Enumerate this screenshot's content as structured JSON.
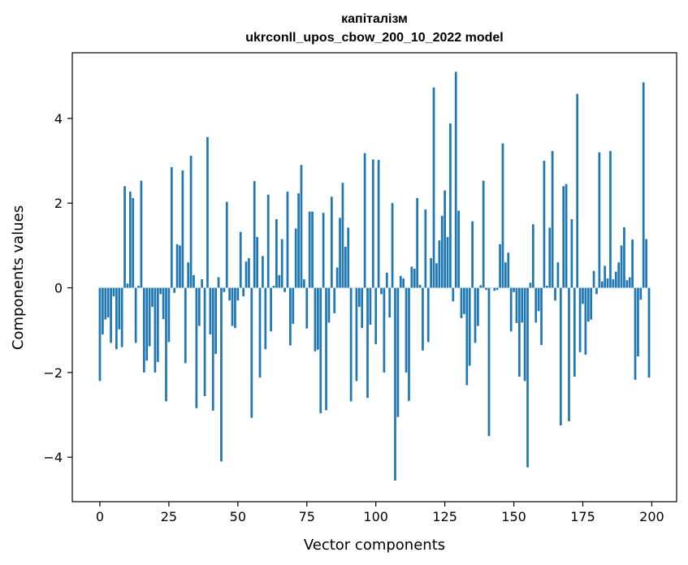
{
  "chart_data": {
    "type": "bar",
    "title": "капіталізм",
    "subtitle": "ukrconll_upos_cbow_200_10_2022 model",
    "xlabel": "Vector components",
    "ylabel": "Components values",
    "xlim": [
      -10,
      209
    ],
    "ylim": [
      -5.05,
      5.55
    ],
    "xticks": [
      0,
      25,
      50,
      75,
      100,
      125,
      150,
      175,
      200
    ],
    "yticks": [
      -4,
      -2,
      0,
      2,
      4
    ],
    "ytick_labels": [
      "−4",
      "−2",
      "0",
      "2",
      "4"
    ],
    "bar_color": "#1f77b4",
    "grid": false,
    "values": [
      -2.2,
      -1.1,
      -0.75,
      -0.7,
      -1.3,
      -0.2,
      -1.45,
      -0.98,
      -1.4,
      2.4,
      0.1,
      2.27,
      2.12,
      -1.3,
      0.05,
      2.53,
      -2.0,
      -1.72,
      -1.38,
      -0.45,
      -2.0,
      -1.75,
      -0.15,
      -0.74,
      -2.68,
      -1.28,
      2.85,
      -0.12,
      1.03,
      1.0,
      2.77,
      -1.78,
      0.6,
      3.12,
      0.3,
      -2.84,
      -0.9,
      0.2,
      -2.56,
      3.56,
      -1.1,
      -2.9,
      -1.56,
      0.25,
      -4.1,
      -0.1,
      2.03,
      -0.3,
      -0.9,
      -0.95,
      -0.3,
      1.32,
      -0.2,
      0.62,
      0.7,
      -3.07,
      2.52,
      1.2,
      -2.12,
      0.75,
      -1.45,
      2.2,
      -1.03,
      0.05,
      1.62,
      0.3,
      1.15,
      -0.1,
      2.27,
      -1.36,
      -0.85,
      1.4,
      2.23,
      2.9,
      0.2,
      -0.96,
      1.8,
      1.8,
      -1.5,
      -1.46,
      -2.96,
      1.77,
      -2.89,
      -0.82,
      2.15,
      -0.6,
      0.48,
      1.65,
      2.48,
      0.97,
      1.42,
      -2.68,
      0.0,
      -2.2,
      -0.45,
      -0.95,
      3.18,
      -2.6,
      -0.87,
      3.03,
      -1.33,
      3.02,
      -0.15,
      -2.0,
      0.36,
      -0.7,
      2.0,
      -4.55,
      -3.05,
      0.28,
      0.22,
      -2.0,
      -2.67,
      0.5,
      0.45,
      2.12,
      0.07,
      -1.48,
      1.85,
      -1.28,
      0.7,
      4.73,
      0.58,
      1.12,
      1.7,
      2.3,
      1.2,
      3.88,
      -0.32,
      5.1,
      1.82,
      -0.72,
      -0.62,
      -2.3,
      -1.84,
      1.57,
      -1.3,
      -0.9,
      0.06,
      2.53,
      -0.05,
      -3.5,
      0.0,
      -0.07,
      -0.05,
      1.03,
      3.41,
      0.6,
      0.83,
      -1.03,
      -0.1,
      -0.83,
      -2.1,
      -0.82,
      -2.2,
      -4.24,
      0.12,
      1.5,
      -0.82,
      -0.55,
      -1.35,
      3.0,
      0.05,
      1.42,
      3.23,
      -0.3,
      0.6,
      -3.25,
      2.4,
      2.45,
      -3.15,
      1.62,
      -2.1,
      4.58,
      -1.52,
      -0.38,
      -1.58,
      -0.8,
      -0.75,
      0.4,
      -0.15,
      3.2,
      0.15,
      0.52,
      0.22,
      3.23,
      0.2,
      0.38,
      0.6,
      1.0,
      1.43,
      0.18,
      0.25,
      1.14,
      -2.17,
      -1.62,
      -0.28,
      4.85,
      1.15,
      -2.12
    ]
  }
}
